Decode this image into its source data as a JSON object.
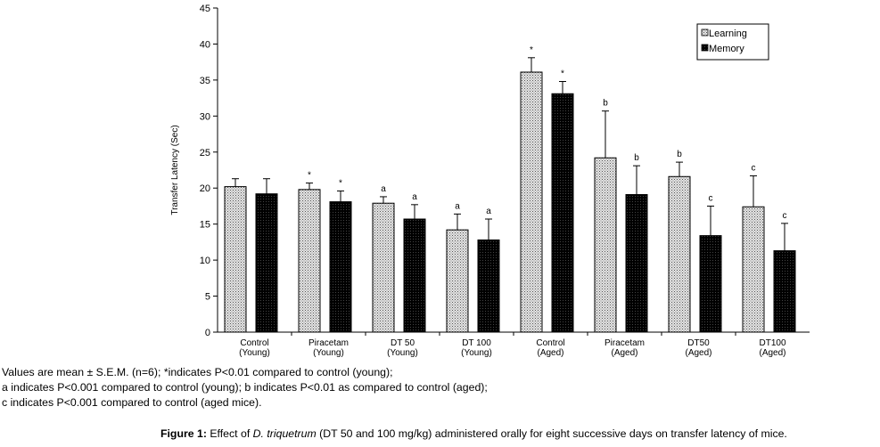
{
  "chart_data": {
    "type": "bar",
    "ylabel": "Transfer Latency (Sec)",
    "ylim": [
      0,
      45
    ],
    "yticks": [
      0,
      5,
      10,
      15,
      20,
      25,
      30,
      35,
      40,
      45
    ],
    "grid": false,
    "legend_position": "top-right",
    "categories": [
      [
        "Control",
        "(Young)"
      ],
      [
        "Piracetam",
        "(Young)"
      ],
      [
        "DT  50",
        "(Young)"
      ],
      [
        "DT 100",
        "(Young)"
      ],
      [
        "Control",
        "(Aged)"
      ],
      [
        "Piracetam",
        "(Aged)"
      ],
      [
        "DT50",
        "(Aged)"
      ],
      [
        "DT100",
        "(Aged)"
      ]
    ],
    "series": [
      {
        "name": "Learning",
        "values": [
          20.2,
          19.8,
          17.9,
          14.2,
          36.1,
          24.2,
          21.6,
          17.4
        ],
        "errors": [
          1.1,
          0.9,
          0.9,
          2.2,
          2.0,
          6.5,
          2.0,
          4.3
        ],
        "annotations": [
          "",
          "*",
          "a",
          "a",
          "*",
          "b",
          "b",
          "c"
        ],
        "color": "#c8c8c8"
      },
      {
        "name": "Memory",
        "values": [
          19.2,
          18.1,
          15.7,
          12.8,
          33.1,
          19.1,
          13.4,
          11.3
        ],
        "errors": [
          2.1,
          1.5,
          2.0,
          2.9,
          1.7,
          4.0,
          4.1,
          3.8
        ],
        "annotations": [
          "",
          "*",
          "a",
          "a",
          "*",
          "b",
          "c",
          "c"
        ],
        "color": "#000000"
      }
    ]
  },
  "notes": [
    "Values are mean ± S.E.M. (n=6); *indicates P<0.01 compared to control (young);",
    "a indicates P<0.001 compared to control (young); b indicates P<0.01 as compared to control (aged);",
    "c indicates P<0.001 compared to control (aged mice)."
  ],
  "caption": {
    "label": "Figure 1:",
    "text_before": " Effect of ",
    "species": "D. triquetrum",
    "text_after": " (DT 50 and 100 mg/kg) administered orally for eight successive days on transfer latency of mice."
  }
}
